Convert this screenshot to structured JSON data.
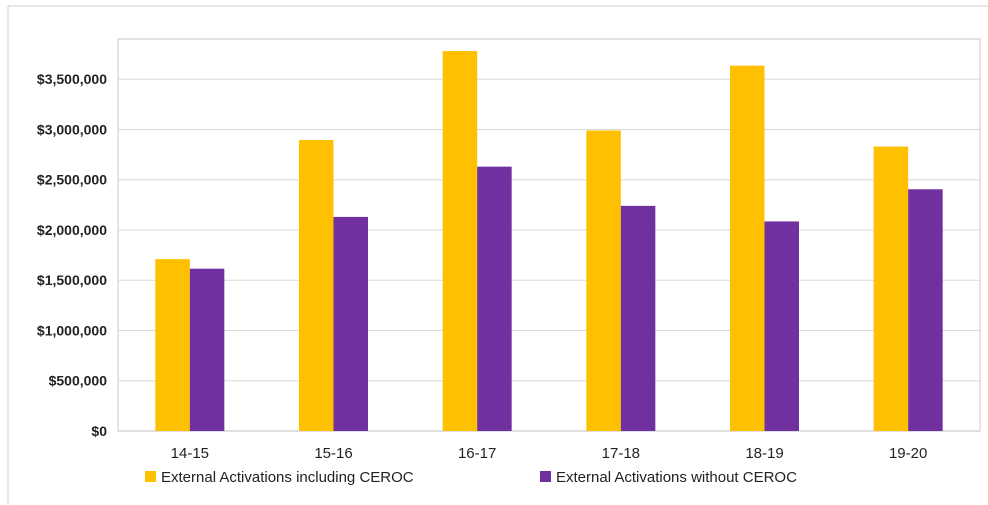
{
  "chart_data": {
    "type": "bar",
    "title": "",
    "xlabel": "",
    "ylabel": "",
    "categories": [
      "14-15",
      "15-16",
      "16-17",
      "17-18",
      "18-19",
      "19-20"
    ],
    "series": [
      {
        "name": "External Activations including CEROC",
        "color": "#FFC000",
        "values": [
          1710000,
          2895000,
          3780000,
          2990000,
          3635000,
          2830000
        ]
      },
      {
        "name": "External Activations without CEROC",
        "color": "#7030A0",
        "values": [
          1615000,
          2130000,
          2630000,
          2240000,
          2085000,
          2405000
        ]
      }
    ],
    "ylim": [
      0,
      3900000
    ],
    "yticks": [
      0,
      500000,
      1000000,
      1500000,
      2000000,
      2500000,
      3000000,
      3500000
    ],
    "ytick_labels": [
      "$0",
      "$500,000",
      "$1,000,000",
      "$1,500,000",
      "$2,000,000",
      "$2,500,000",
      "$3,000,000",
      "$3,500,000"
    ],
    "grid": true,
    "legend_position": "bottom"
  }
}
